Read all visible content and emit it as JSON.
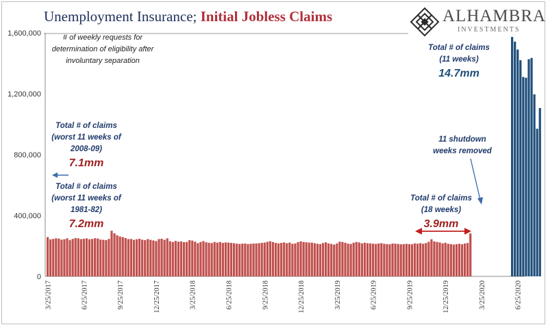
{
  "title": {
    "part1": "Unemployment Insurance; ",
    "part2": "Initial Jobless Claims"
  },
  "logo": {
    "name": "ALHAMBRA",
    "sub": "INVESTMENTS",
    "icon": "diamond-lattice-icon"
  },
  "colors": {
    "title_blue": "#1f2f5c",
    "title_red": "#b0303a",
    "bar_red": "#c0504d",
    "bar_blue": "#1f4e79",
    "note_red": "#a02020",
    "note_blue": "#1f3a6b",
    "arrow_blue": "#3b6aa8"
  },
  "annotations": {
    "definition": [
      "# of weekly requests for",
      "determination of eligibility after",
      "involuntary separation"
    ],
    "total_0809": [
      "Total # of claims",
      "(worst 11 weeks of",
      "2008-09)"
    ],
    "total_0809_value": "7.1mm",
    "total_8182": [
      "Total # of claims",
      "(worst 11 weeks of",
      "1981-82)"
    ],
    "total_8182_value": "7.2mm",
    "total_11wk": [
      "Total # of claims",
      "(11 weeks)"
    ],
    "total_11wk_value": "14.7mm",
    "shutdown": [
      "11 shutdown",
      "weeks removed"
    ],
    "total_18wk": [
      "Total # of claims",
      "(18 weeks)"
    ],
    "total_18wk_value": "3.9mm"
  },
  "chart_data": {
    "type": "bar",
    "title": "Unemployment Insurance; Initial Jobless Claims",
    "ylim": [
      0,
      1600000
    ],
    "yticks": [
      0,
      400000,
      800000,
      1200000,
      1600000
    ],
    "ytick_labels": [
      "0",
      "400,000",
      "800,000",
      "1,200,000",
      "1,600,000"
    ],
    "xtick_labels": [
      "3/25/2017",
      "6/25/2017",
      "9/25/2017",
      "12/25/2017",
      "3/25/2018",
      "6/25/2018",
      "9/25/2018",
      "12/25/2018",
      "3/25/2019",
      "6/25/2019",
      "9/25/2019",
      "12/25/2019",
      "3/25/2020",
      "6/25/2020"
    ],
    "xtick_weeks": [
      0,
      13,
      26,
      39,
      52,
      65,
      78,
      91,
      104,
      117,
      130,
      143,
      156,
      169
    ],
    "grid": false,
    "legend": "none",
    "series": [
      {
        "color": "red",
        "start_week": 0,
        "values": [
          258000,
          243000,
          246000,
          250000,
          248000,
          241000,
          244000,
          250000,
          238000,
          246000,
          252000,
          250000,
          245000,
          247000,
          250000,
          244000,
          246000,
          251000,
          249000,
          242000,
          240000,
          238000,
          246000,
          300000,
          283000,
          270000,
          262000,
          258000,
          252000,
          245000,
          246000,
          240000,
          244000,
          247000,
          241000,
          238000,
          245000,
          240000,
          236000,
          232000,
          245000,
          247000,
          240000,
          250000,
          231000,
          226000,
          233000,
          228000,
          230000,
          225000,
          226000,
          238000,
          235000,
          228000,
          218000,
          226000,
          232000,
          224000,
          221000,
          219000,
          226000,
          222000,
          226000,
          220000,
          223000,
          222000,
          220000,
          218000,
          215000,
          213000,
          215000,
          216000,
          212000,
          214000,
          216000,
          216000,
          218000,
          220000,
          222000,
          227000,
          231000,
          226000,
          220000,
          217000,
          220000,
          223000,
          218000,
          222000,
          214000,
          216000,
          225000,
          230000,
          226000,
          224000,
          222000,
          222000,
          218000,
          214000,
          212000,
          219000,
          224000,
          216000,
          213000,
          209000,
          216000,
          228000,
          226000,
          221000,
          215000,
          213000,
          221000,
          226000,
          223000,
          217000,
          221000,
          218000,
          217000,
          215000,
          213000,
          216000,
          218000,
          214000,
          212000,
          211000,
          216000,
          215000,
          213000,
          211000,
          212000,
          214000,
          212000,
          211000,
          217000,
          215000,
          218000,
          214000,
          219000,
          227000,
          244000,
          230000,
          226000,
          223000,
          217000,
          221000,
          214000,
          212000,
          209000,
          212000,
          214000,
          211000,
          216000,
          219000,
          282000
        ]
      },
      {
        "color": "blue",
        "start_week": 167,
        "values": [
          1573000,
          1542000,
          1490000,
          1420000,
          1310000,
          1305000,
          1427000,
          1435000,
          1196000,
          970000,
          1106000
        ]
      }
    ]
  }
}
